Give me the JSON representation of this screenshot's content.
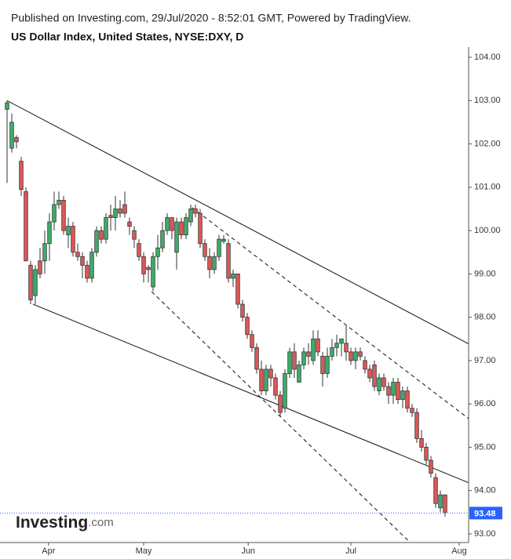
{
  "chart_data": {
    "type": "candlestick",
    "published": "Published on Investing.com, 29/Jul/2020 - 8:52:01 GMT, Powered by TradingView.",
    "title": "US Dollar Index, United States, NYSE:DXY, D",
    "logo": "Investing",
    "logo_suffix": ".com",
    "up_color": "#3cae6a",
    "down_color": "#e05757",
    "ylim": [
      92.8,
      104.2
    ],
    "yticks": [
      {
        "value": 93,
        "label": "93.00"
      },
      {
        "value": 94,
        "label": "94.00"
      },
      {
        "value": 95,
        "label": "95.00"
      },
      {
        "value": 96,
        "label": "96.00"
      },
      {
        "value": 97,
        "label": "97.00"
      },
      {
        "value": 98,
        "label": "98.00"
      },
      {
        "value": 99,
        "label": "99.00"
      },
      {
        "value": 100,
        "label": "100.00"
      },
      {
        "value": 101,
        "label": "101.00"
      },
      {
        "value": 102,
        "label": "102.00"
      },
      {
        "value": 103,
        "label": "103.00"
      },
      {
        "value": 104,
        "label": "104.00"
      }
    ],
    "xlim": [
      -1.5,
      98
    ],
    "xticks": [
      {
        "value": 8.8,
        "label": "Apr"
      },
      {
        "value": 29,
        "label": "May"
      },
      {
        "value": 51.2,
        "label": "Jun"
      },
      {
        "value": 73,
        "label": "Jul"
      },
      {
        "value": 96,
        "label": "Aug"
      }
    ],
    "last_price": 93.48,
    "trendlines": [
      {
        "style": "solid",
        "start": [
          0,
          103.0
        ],
        "end": [
          107,
          96.87
        ]
      },
      {
        "style": "solid",
        "start": [
          5.5,
          98.3
        ],
        "end": [
          107,
          93.78
        ]
      },
      {
        "style": "dashed",
        "start": [
          39.3,
          100.53
        ],
        "end": [
          98,
          95.66
        ]
      },
      {
        "style": "dashed",
        "start": [
          30.7,
          98.59
        ],
        "end": [
          85.2,
          92.84
        ]
      }
    ],
    "ohlc": [
      [
        102.8,
        103.0,
        101.1,
        102.95
      ],
      [
        101.9,
        102.7,
        101.8,
        102.5
      ],
      [
        102.15,
        102.2,
        101.9,
        102.05
      ],
      [
        101.6,
        101.7,
        100.8,
        100.95
      ],
      [
        100.9,
        101.0,
        99.3,
        99.3
      ],
      [
        99.2,
        99.3,
        98.3,
        98.4
      ],
      [
        98.5,
        99.2,
        98.3,
        99.1
      ],
      [
        99.3,
        99.6,
        98.9,
        99.0
      ],
      [
        99.3,
        100.0,
        99.0,
        99.7
      ],
      [
        99.7,
        100.4,
        99.3,
        100.2
      ],
      [
        100.2,
        100.9,
        100.0,
        100.6
      ],
      [
        100.6,
        100.9,
        100.5,
        100.7
      ],
      [
        100.7,
        100.8,
        99.9,
        100.0
      ],
      [
        99.9,
        100.3,
        99.6,
        100.1
      ],
      [
        100.1,
        100.2,
        99.4,
        99.5
      ],
      [
        99.5,
        99.7,
        99.3,
        99.4
      ],
      [
        99.4,
        99.5,
        98.9,
        99.2
      ],
      [
        99.2,
        99.3,
        98.8,
        98.9
      ],
      [
        98.9,
        99.6,
        98.8,
        99.5
      ],
      [
        99.5,
        100.1,
        99.4,
        100.0
      ],
      [
        100.0,
        100.1,
        99.7,
        99.8
      ],
      [
        99.8,
        100.4,
        99.7,
        100.3
      ],
      [
        100.35,
        100.6,
        100.0,
        100.3
      ],
      [
        100.3,
        100.8,
        100.0,
        100.5
      ],
      [
        100.5,
        100.7,
        100.3,
        100.4
      ],
      [
        100.6,
        100.9,
        100.3,
        100.4
      ],
      [
        100.2,
        100.3,
        99.9,
        100.1
      ],
      [
        100.0,
        100.1,
        99.6,
        99.8
      ],
      [
        99.7,
        99.8,
        99.3,
        99.4
      ],
      [
        99.4,
        99.5,
        98.8,
        99.0
      ],
      [
        99.15,
        99.2,
        98.8,
        99.1
      ],
      [
        98.7,
        99.5,
        98.6,
        99.4
      ],
      [
        99.4,
        99.9,
        99.1,
        99.6
      ],
      [
        99.6,
        100.2,
        99.5,
        100.0
      ],
      [
        100.0,
        100.4,
        99.9,
        100.3
      ],
      [
        100.3,
        100.3,
        99.8,
        100.0
      ],
      [
        99.5,
        100.3,
        99.1,
        100.2
      ],
      [
        100.2,
        100.3,
        99.8,
        99.9
      ],
      [
        99.9,
        100.4,
        99.8,
        100.3
      ],
      [
        100.2,
        100.6,
        100.1,
        100.5
      ],
      [
        100.5,
        100.6,
        100.3,
        100.4
      ],
      [
        100.4,
        100.5,
        99.6,
        99.7
      ],
      [
        99.7,
        99.8,
        99.3,
        99.4
      ],
      [
        99.4,
        99.6,
        98.9,
        99.1
      ],
      [
        99.1,
        99.5,
        99.0,
        99.4
      ],
      [
        99.4,
        99.9,
        99.3,
        99.8
      ],
      [
        99.75,
        99.9,
        99.7,
        99.8
      ],
      [
        99.7,
        99.8,
        98.8,
        98.9
      ],
      [
        98.9,
        99.1,
        98.7,
        99.0
      ],
      [
        99.0,
        99.0,
        98.2,
        98.3
      ],
      [
        98.3,
        98.4,
        97.9,
        98.0
      ],
      [
        98.0,
        98.1,
        97.5,
        97.6
      ],
      [
        97.6,
        97.7,
        97.2,
        97.3
      ],
      [
        97.3,
        97.4,
        96.7,
        96.8
      ],
      [
        96.8,
        97.0,
        96.2,
        96.3
      ],
      [
        96.3,
        96.9,
        96.2,
        96.8
      ],
      [
        96.8,
        96.9,
        96.4,
        96.6
      ],
      [
        96.6,
        96.7,
        96.1,
        96.2
      ],
      [
        96.2,
        96.3,
        95.7,
        95.8
      ],
      [
        95.9,
        96.8,
        95.8,
        96.7
      ],
      [
        96.7,
        97.3,
        96.6,
        97.2
      ],
      [
        97.2,
        97.4,
        96.6,
        96.8
      ],
      [
        96.5,
        97.0,
        96.5,
        96.9
      ],
      [
        96.9,
        97.3,
        96.8,
        97.2
      ],
      [
        97.2,
        97.4,
        96.9,
        97.1
      ],
      [
        97.0,
        97.7,
        96.9,
        97.5
      ],
      [
        97.5,
        97.7,
        97.1,
        97.2
      ],
      [
        97.1,
        97.2,
        96.4,
        96.7
      ],
      [
        96.7,
        97.3,
        96.6,
        97.1
      ],
      [
        97.1,
        97.5,
        97.0,
        97.3
      ],
      [
        97.3,
        97.6,
        97.1,
        97.4
      ],
      [
        97.4,
        97.5,
        97.1,
        97.5
      ],
      [
        97.4,
        97.8,
        97.0,
        97.2
      ],
      [
        97.2,
        97.3,
        96.9,
        97.0
      ],
      [
        97.0,
        97.3,
        96.8,
        97.2
      ],
      [
        97.2,
        97.3,
        97.0,
        97.1
      ],
      [
        97.0,
        97.1,
        96.7,
        96.8
      ],
      [
        96.8,
        96.9,
        96.5,
        96.6
      ],
      [
        96.9,
        97.0,
        96.3,
        96.4
      ],
      [
        96.3,
        96.7,
        96.2,
        96.6
      ],
      [
        96.6,
        96.7,
        96.3,
        96.4
      ],
      [
        96.4,
        96.5,
        96.0,
        96.2
      ],
      [
        96.2,
        96.6,
        96.0,
        96.5
      ],
      [
        96.5,
        96.6,
        96.0,
        96.1
      ],
      [
        96.1,
        96.4,
        95.9,
        96.3
      ],
      [
        96.3,
        96.4,
        95.8,
        95.9
      ],
      [
        95.9,
        96.0,
        95.7,
        95.8
      ],
      [
        95.8,
        95.9,
        95.1,
        95.2
      ],
      [
        95.2,
        95.4,
        94.9,
        95.0
      ],
      [
        95.0,
        95.1,
        94.6,
        94.7
      ],
      [
        94.7,
        94.8,
        94.3,
        94.4
      ],
      [
        94.3,
        94.4,
        93.6,
        93.7
      ],
      [
        93.6,
        94.0,
        93.5,
        93.9
      ],
      [
        93.9,
        93.9,
        93.4,
        93.5
      ]
    ]
  }
}
